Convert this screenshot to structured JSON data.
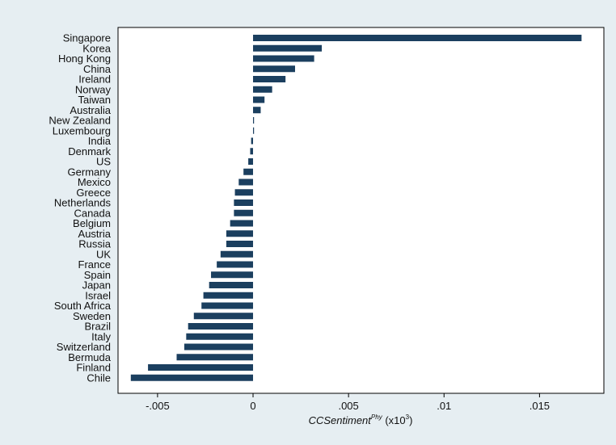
{
  "chart_data": {
    "type": "bar",
    "orientation": "horizontal",
    "xlabel": {
      "main": "CCSentiment",
      "superscript": "Phy",
      "suffix": " (x10",
      "suffix_sup": "3",
      "suffix_end": ")"
    },
    "ylabel": "",
    "xlim": [
      -0.0069,
      0.0182
    ],
    "x_ticks": [
      -0.005,
      0,
      0.005,
      0.01,
      0.015
    ],
    "x_tick_labels": [
      "-.005",
      "0",
      ".005",
      ".01",
      ".015"
    ],
    "grid": false,
    "legend": "none",
    "colors": {
      "bar": "#1b3f5f",
      "outer_background": "#e6eef2",
      "plot_background": "#ffffff"
    },
    "categories": [
      "Singapore",
      "Korea",
      "Hong Kong",
      "China",
      "Ireland",
      "Norway",
      "Taiwan",
      "Australia",
      "New Zealand",
      "Luxembourg",
      "India",
      "Denmark",
      "US",
      "Germany",
      "Mexico",
      "Greece",
      "Netherlands",
      "Canada",
      "Belgium",
      "Austria",
      "Russia",
      "UK",
      "France",
      "Spain",
      "Japan",
      "Israel",
      "South Africa",
      "Sweden",
      "Brazil",
      "Italy",
      "Switzerland",
      "Bermuda",
      "Finland",
      "Chile"
    ],
    "values": [
      0.0172,
      0.0036,
      0.0032,
      0.0022,
      0.0017,
      0.001,
      0.0006,
      0.0004,
      0.0,
      0.0,
      -0.0001,
      -0.00015,
      -0.00025,
      -0.0005,
      -0.00075,
      -0.00095,
      -0.001,
      -0.001,
      -0.0012,
      -0.0014,
      -0.0014,
      -0.0017,
      -0.0019,
      -0.0022,
      -0.0023,
      -0.0026,
      -0.0027,
      -0.0031,
      -0.0034,
      -0.0035,
      -0.0036,
      -0.004,
      -0.0055,
      -0.0064
    ]
  }
}
